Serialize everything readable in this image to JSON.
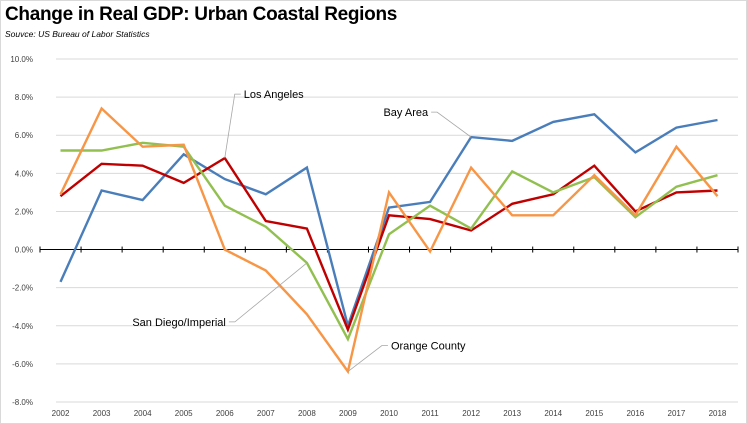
{
  "chart_data": {
    "type": "line",
    "title": "Change in Real GDP:  Urban Coastal Regions",
    "subtitle": "Souvce:  US Bureau of Labor Statistics",
    "xlabel": "",
    "ylabel": "",
    "ylim": [
      -8,
      10
    ],
    "grid": true,
    "legend": "none (direct line annotations)",
    "x": [
      "2002",
      "2003",
      "2004",
      "2005",
      "2006",
      "2007",
      "2008",
      "2009",
      "2010",
      "2011",
      "2012",
      "2013",
      "2014",
      "2015",
      "2016",
      "2017",
      "2018"
    ],
    "yticks": [
      10,
      8,
      6,
      4,
      2,
      0,
      -2,
      -4,
      -6,
      -8
    ],
    "ytick_labels": [
      "10.0%",
      "8.0%",
      "6.0%",
      "4.0%",
      "2.0%",
      "0.0%",
      "-2.0%",
      "-4.0%",
      "-6.0%",
      "-8.0%"
    ],
    "series": [
      {
        "name": "Bay Area",
        "color": "#4a7ebb",
        "values": [
          -1.7,
          3.1,
          2.6,
          5.0,
          3.7,
          2.9,
          4.3,
          -4.0,
          2.2,
          2.5,
          5.9,
          5.7,
          6.7,
          7.1,
          5.1,
          6.4,
          6.8
        ]
      },
      {
        "name": "Los Angeles",
        "color": "#c00000",
        "values": [
          2.8,
          4.5,
          4.4,
          3.5,
          4.8,
          1.5,
          1.1,
          -4.2,
          1.8,
          1.6,
          1.0,
          2.4,
          2.9,
          4.4,
          2.0,
          3.0,
          3.1
        ]
      },
      {
        "name": "San Diego/Imperial",
        "color": "#92c050",
        "values": [
          5.2,
          5.2,
          5.6,
          5.4,
          2.3,
          1.2,
          -0.7,
          -4.7,
          0.8,
          2.3,
          1.1,
          4.1,
          3.0,
          3.8,
          1.7,
          3.3,
          3.9
        ]
      },
      {
        "name": "Orange County",
        "color": "#f79646",
        "values": [
          2.9,
          7.4,
          5.4,
          5.5,
          0.0,
          -1.1,
          -3.4,
          -6.4,
          3.0,
          -0.1,
          4.3,
          1.8,
          1.8,
          3.9,
          1.8,
          5.4,
          2.8
        ]
      }
    ],
    "annotations": [
      {
        "text": "Los Angeles",
        "series": "Los Angeles",
        "x": "2006"
      },
      {
        "text": "Bay Area",
        "series": "Bay Area",
        "x": "2012"
      },
      {
        "text": "San Diego/Imperial",
        "series": "San Diego/Imperial",
        "x": "2008"
      },
      {
        "text": "Orange County",
        "series": "Orange County",
        "x": "2009"
      }
    ]
  }
}
